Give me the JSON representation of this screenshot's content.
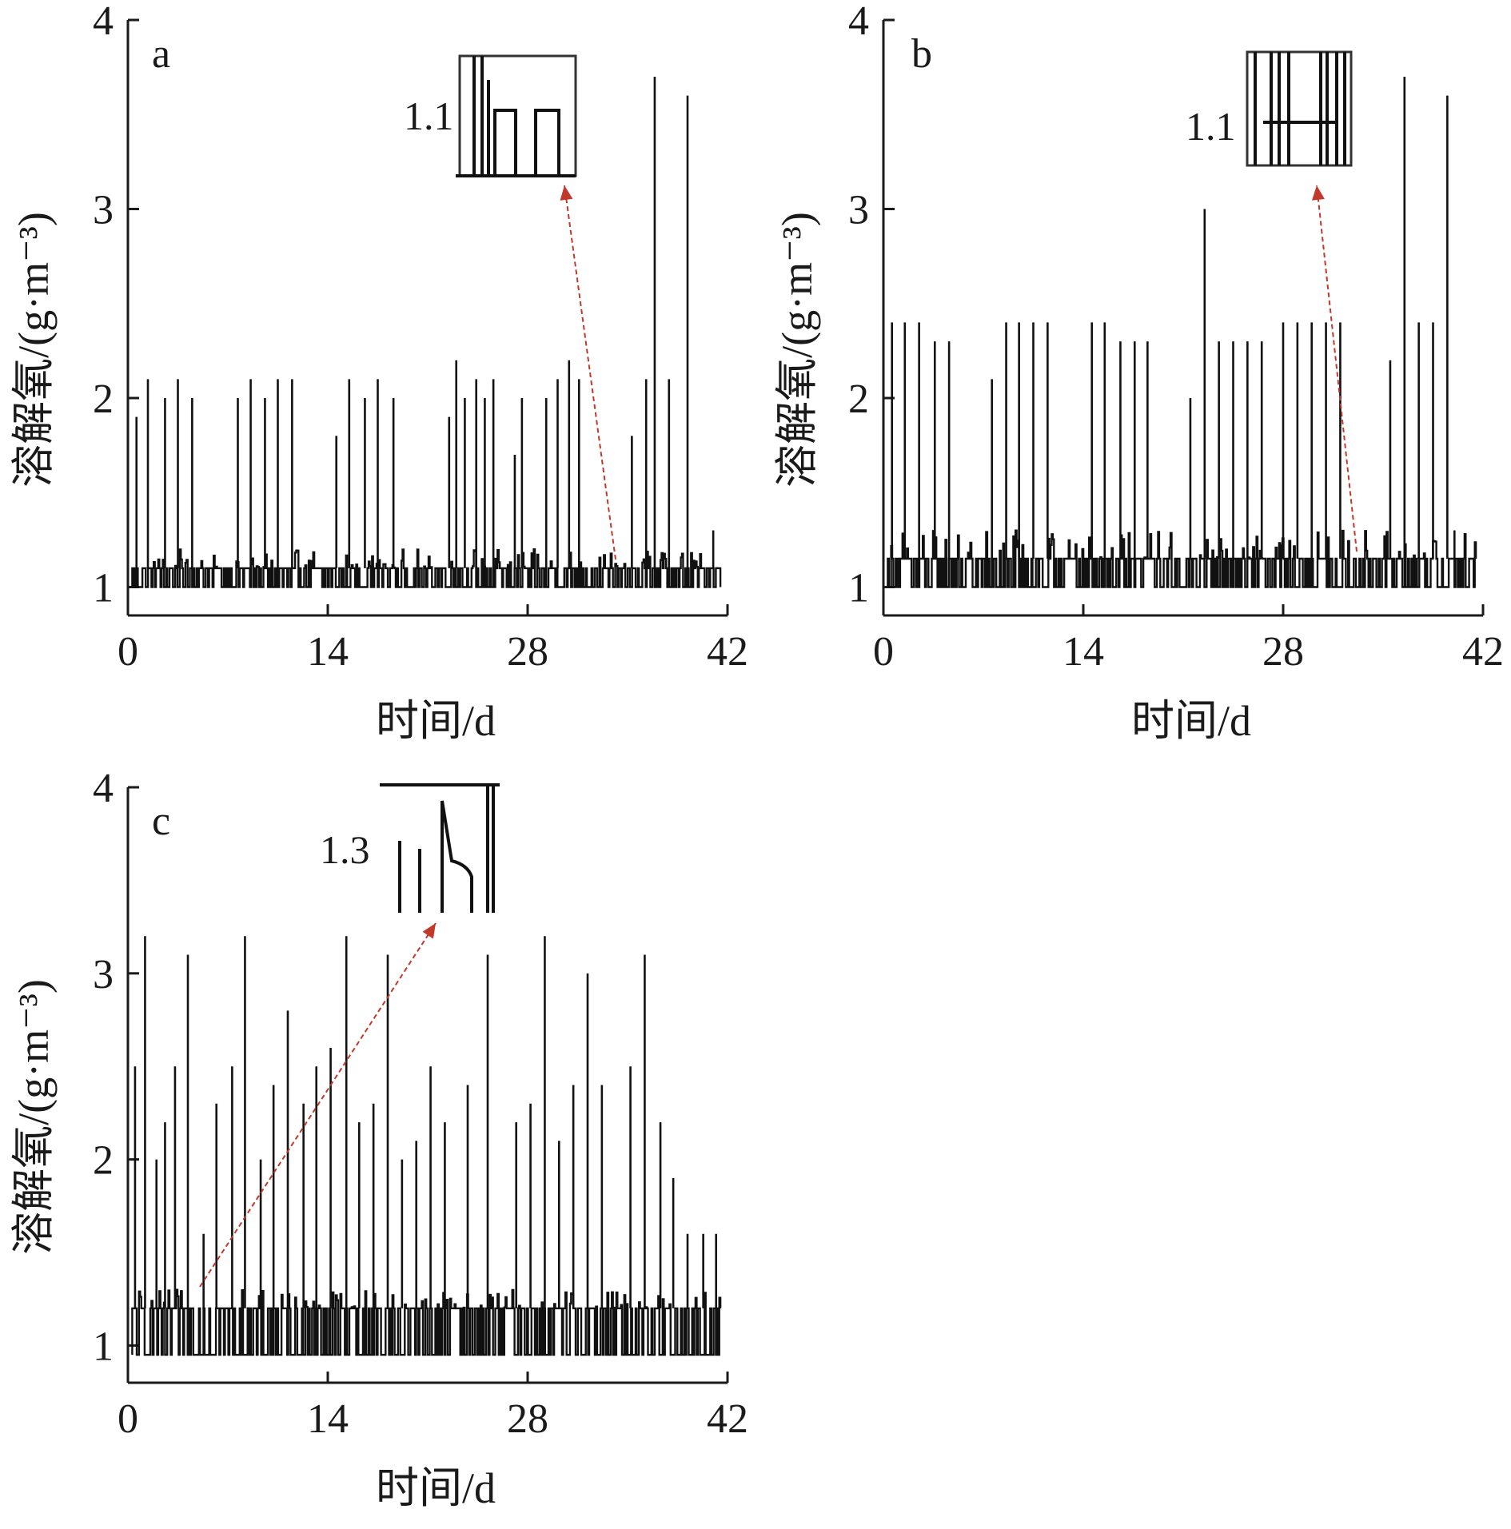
{
  "chart_data": [
    {
      "type": "line",
      "panel_label": "a",
      "xlabel": "时间/d",
      "ylabel": "溶解氧/(g·m⁻³)",
      "xlim": [
        0,
        42
      ],
      "ylim": [
        0.85,
        4
      ],
      "xticks": [
        0,
        14,
        28,
        42
      ],
      "yticks": [
        1,
        2,
        3,
        4
      ],
      "baseline": {
        "low": 1.0,
        "high": 1.1,
        "noise_max": 1.2
      },
      "spikes": [
        {
          "x": 0.6,
          "y": 1.9
        },
        {
          "x": 1.4,
          "y": 2.1
        },
        {
          "x": 2.6,
          "y": 2.0
        },
        {
          "x": 3.5,
          "y": 2.1
        },
        {
          "x": 4.5,
          "y": 2.0
        },
        {
          "x": 7.7,
          "y": 2.0
        },
        {
          "x": 8.6,
          "y": 2.1
        },
        {
          "x": 9.6,
          "y": 2.0
        },
        {
          "x": 10.5,
          "y": 2.1
        },
        {
          "x": 11.5,
          "y": 2.1
        },
        {
          "x": 14.6,
          "y": 1.8
        },
        {
          "x": 15.5,
          "y": 2.1
        },
        {
          "x": 16.6,
          "y": 2.0
        },
        {
          "x": 17.5,
          "y": 2.1
        },
        {
          "x": 18.6,
          "y": 2.0
        },
        {
          "x": 22.5,
          "y": 1.9
        },
        {
          "x": 23.0,
          "y": 2.2
        },
        {
          "x": 23.6,
          "y": 2.0
        },
        {
          "x": 24.4,
          "y": 2.1
        },
        {
          "x": 25.0,
          "y": 2.0
        },
        {
          "x": 25.6,
          "y": 2.1
        },
        {
          "x": 27.1,
          "y": 1.7
        },
        {
          "x": 27.6,
          "y": 2.0
        },
        {
          "x": 29.3,
          "y": 2.0
        },
        {
          "x": 30.1,
          "y": 2.1
        },
        {
          "x": 30.9,
          "y": 2.2
        },
        {
          "x": 31.6,
          "y": 2.1
        },
        {
          "x": 35.3,
          "y": 1.8
        },
        {
          "x": 36.3,
          "y": 2.1
        },
        {
          "x": 36.9,
          "y": 3.7
        },
        {
          "x": 37.9,
          "y": 2.1
        },
        {
          "x": 39.2,
          "y": 3.6
        },
        {
          "x": 41.0,
          "y": 1.3
        }
      ],
      "inset_label": "1.1"
    },
    {
      "type": "line",
      "panel_label": "b",
      "xlabel": "时间/d",
      "ylabel": "溶解氧/(g·m⁻³)",
      "xlim": [
        0,
        42
      ],
      "ylim": [
        0.85,
        4
      ],
      "xticks": [
        0,
        14,
        28,
        42
      ],
      "yticks": [
        1,
        2,
        3,
        4
      ],
      "baseline": {
        "low": 1.0,
        "high": 1.15,
        "noise_max": 1.3
      },
      "spikes": [
        {
          "x": 0.6,
          "y": 2.4
        },
        {
          "x": 1.5,
          "y": 2.4
        },
        {
          "x": 2.5,
          "y": 2.4
        },
        {
          "x": 3.6,
          "y": 2.3
        },
        {
          "x": 4.6,
          "y": 2.3
        },
        {
          "x": 7.6,
          "y": 2.1
        },
        {
          "x": 8.6,
          "y": 2.4
        },
        {
          "x": 9.5,
          "y": 2.4
        },
        {
          "x": 10.5,
          "y": 2.4
        },
        {
          "x": 11.5,
          "y": 2.4
        },
        {
          "x": 14.6,
          "y": 2.4
        },
        {
          "x": 15.5,
          "y": 2.4
        },
        {
          "x": 16.6,
          "y": 2.3
        },
        {
          "x": 17.6,
          "y": 2.3
        },
        {
          "x": 18.5,
          "y": 2.3
        },
        {
          "x": 21.5,
          "y": 2.0
        },
        {
          "x": 22.5,
          "y": 3.0
        },
        {
          "x": 23.5,
          "y": 2.3
        },
        {
          "x": 24.5,
          "y": 2.3
        },
        {
          "x": 25.5,
          "y": 2.3
        },
        {
          "x": 26.5,
          "y": 2.3
        },
        {
          "x": 28.0,
          "y": 2.4
        },
        {
          "x": 29.0,
          "y": 2.4
        },
        {
          "x": 30.0,
          "y": 2.4
        },
        {
          "x": 31.0,
          "y": 2.4
        },
        {
          "x": 32.0,
          "y": 2.4
        },
        {
          "x": 35.5,
          "y": 2.2
        },
        {
          "x": 36.5,
          "y": 3.7
        },
        {
          "x": 37.5,
          "y": 2.4
        },
        {
          "x": 38.5,
          "y": 2.4
        },
        {
          "x": 39.5,
          "y": 3.6
        },
        {
          "x": 40.0,
          "y": 1.3
        }
      ],
      "inset_label": "1.1"
    },
    {
      "type": "line",
      "panel_label": "c",
      "xlabel": "时间/d",
      "ylabel": "溶解氧/(g·m⁻³)",
      "xlim": [
        0,
        42
      ],
      "ylim": [
        0.8,
        4
      ],
      "xticks": [
        0,
        14,
        28,
        42
      ],
      "yticks": [
        1,
        2,
        3,
        4
      ],
      "baseline": {
        "low": 0.95,
        "high": 1.2,
        "noise_max": 1.3
      },
      "spikes": [
        {
          "x": 0.5,
          "y": 2.5
        },
        {
          "x": 1.2,
          "y": 3.2
        },
        {
          "x": 2.0,
          "y": 2.0
        },
        {
          "x": 2.6,
          "y": 2.2
        },
        {
          "x": 3.3,
          "y": 2.5
        },
        {
          "x": 4.2,
          "y": 3.1
        },
        {
          "x": 5.3,
          "y": 1.6
        },
        {
          "x": 6.2,
          "y": 2.3
        },
        {
          "x": 7.3,
          "y": 2.5
        },
        {
          "x": 8.2,
          "y": 3.2
        },
        {
          "x": 9.3,
          "y": 2.0
        },
        {
          "x": 10.2,
          "y": 2.4
        },
        {
          "x": 11.2,
          "y": 2.8
        },
        {
          "x": 12.3,
          "y": 2.3
        },
        {
          "x": 13.2,
          "y": 2.5
        },
        {
          "x": 14.2,
          "y": 2.6
        },
        {
          "x": 15.3,
          "y": 3.2
        },
        {
          "x": 16.2,
          "y": 2.2
        },
        {
          "x": 17.2,
          "y": 2.3
        },
        {
          "x": 18.2,
          "y": 3.1
        },
        {
          "x": 19.2,
          "y": 2.0
        },
        {
          "x": 20.2,
          "y": 2.1
        },
        {
          "x": 21.2,
          "y": 2.5
        },
        {
          "x": 22.2,
          "y": 2.2
        },
        {
          "x": 23.8,
          "y": 2.4
        },
        {
          "x": 25.2,
          "y": 3.1
        },
        {
          "x": 27.2,
          "y": 2.2
        },
        {
          "x": 28.2,
          "y": 2.3
        },
        {
          "x": 29.2,
          "y": 3.2
        },
        {
          "x": 30.2,
          "y": 2.1
        },
        {
          "x": 31.2,
          "y": 2.4
        },
        {
          "x": 32.2,
          "y": 3.0
        },
        {
          "x": 33.2,
          "y": 2.4
        },
        {
          "x": 35.2,
          "y": 2.5
        },
        {
          "x": 36.2,
          "y": 3.1
        },
        {
          "x": 37.3,
          "y": 2.2
        },
        {
          "x": 38.2,
          "y": 1.9
        },
        {
          "x": 39.2,
          "y": 1.6
        },
        {
          "x": 40.3,
          "y": 1.6
        },
        {
          "x": 41.2,
          "y": 1.6
        }
      ],
      "inset_label": "1.3"
    }
  ]
}
